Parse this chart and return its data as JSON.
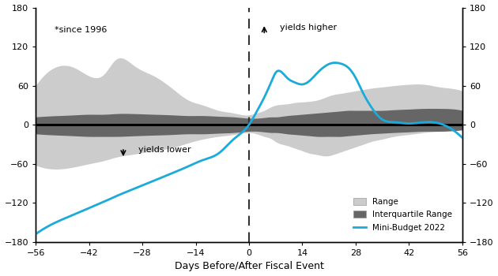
{
  "x_min": -56,
  "x_max": 56,
  "y_min": -180,
  "y_max": 180,
  "xticks": [
    -56,
    -42,
    -28,
    -14,
    0,
    14,
    28,
    42,
    56
  ],
  "yticks": [
    -180,
    -120,
    -60,
    0,
    60,
    120,
    180
  ],
  "xlabel": "Days Before/After Fiscal Event",
  "since_label": "*since 1996",
  "yields_higher_label": "yields higher",
  "yields_lower_label": "yields lower",
  "legend_range": "Range",
  "legend_iq": "Interquartile Range",
  "legend_mini": "Mini-Budget 2022",
  "range_color": "#cccccc",
  "iq_color": "#666666",
  "mini_color": "#1aabdb",
  "zero_line_color": "#000000",
  "dashed_line_color": "#333333",
  "background_color": "#ffffff"
}
